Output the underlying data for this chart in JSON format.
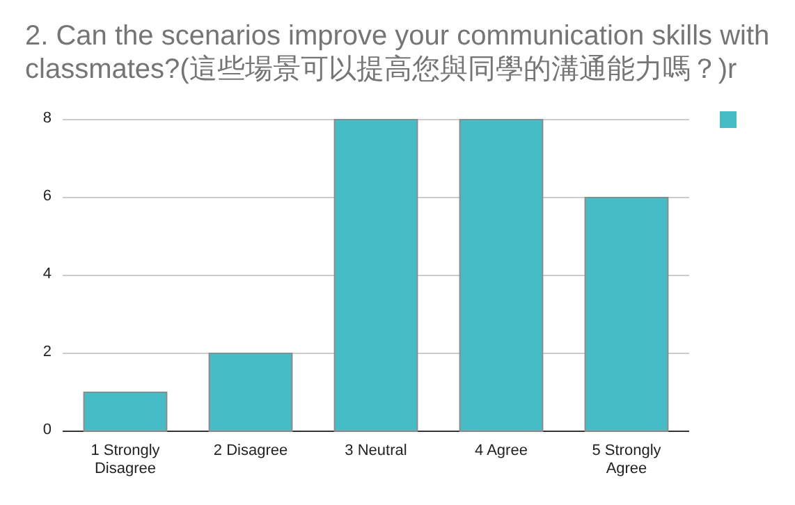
{
  "chart_data": {
    "type": "bar",
    "title": "2. Can the scenarios improve your communication skills with classmates?(這些場景可以提高您與同學的溝通能力嗎？)r",
    "categories": [
      "1 Strongly Disagree",
      "2 Disagree",
      "3 Neutral",
      "4 Agree",
      "5 Strongly Agree"
    ],
    "values": [
      1,
      2,
      8,
      8,
      6
    ],
    "color": "#46bdc6",
    "ylim": [
      0,
      8
    ],
    "yticks": [
      0,
      2,
      4,
      6,
      8
    ],
    "grid": "y"
  }
}
